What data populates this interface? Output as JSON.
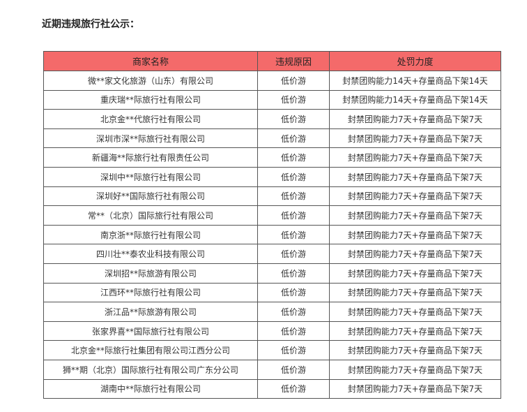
{
  "title": "近期违规旅行社公示：",
  "header_color": "#f46a6a",
  "table": {
    "headers": [
      "商家名称",
      "违规原因",
      "处罚力度"
    ],
    "rows": [
      [
        "微**家文化旅游（山东）有限公司",
        "低价游",
        "封禁团购能力14天+存量商品下架14天"
      ],
      [
        "重庆瑞**际旅行社有限公司",
        "低价游",
        "封禁团购能力14天+存量商品下架14天"
      ],
      [
        "北京金**代旅行社有限公司",
        "低价游",
        "封禁团购能力7天+存量商品下架7天"
      ],
      [
        "深圳市深**际旅行社有限公司",
        "低价游",
        "封禁团购能力7天+存量商品下架7天"
      ],
      [
        "新疆海**际旅行社有限责任公司",
        "低价游",
        "封禁团购能力7天+存量商品下架7天"
      ],
      [
        "深圳中**际旅行社有限公司",
        "低价游",
        "封禁团购能力7天+存量商品下架7天"
      ],
      [
        "深圳好**国际旅行社有限公司",
        "低价游",
        "封禁团购能力7天+存量商品下架7天"
      ],
      [
        "常**（北京）国际旅行社有限公司",
        "低价游",
        "封禁团购能力7天+存量商品下架7天"
      ],
      [
        "南京浙**际旅行社有限公司",
        "低价游",
        "封禁团购能力7天+存量商品下架7天"
      ],
      [
        "四川壮**泰农业科技有限公司",
        "低价游",
        "封禁团购能力7天+存量商品下架7天"
      ],
      [
        "深圳招**际旅游有限公司",
        "低价游",
        "封禁团购能力7天+存量商品下架7天"
      ],
      [
        "江西环**际旅行社有限公司",
        "低价游",
        "封禁团购能力7天+存量商品下架7天"
      ],
      [
        "浙江品**际旅游有限公司",
        "低价游",
        "封禁团购能力7天+存量商品下架7天"
      ],
      [
        "张家界喜**国际旅行社有限公司",
        "低价游",
        "封禁团购能力7天+存量商品下架7天"
      ],
      [
        "北京金**际旅行社集团有限公司江西分公司",
        "低价游",
        "封禁团购能力7天+存量商品下架7天"
      ],
      [
        "狮**期（北京）国际旅行社有限公司广东分公司",
        "低价游",
        "封禁团购能力7天+存量商品下架7天"
      ],
      [
        "湖南中**际旅行社有限公司",
        "低价游",
        "封禁团购能力7天+存量商品下架7天"
      ]
    ]
  }
}
